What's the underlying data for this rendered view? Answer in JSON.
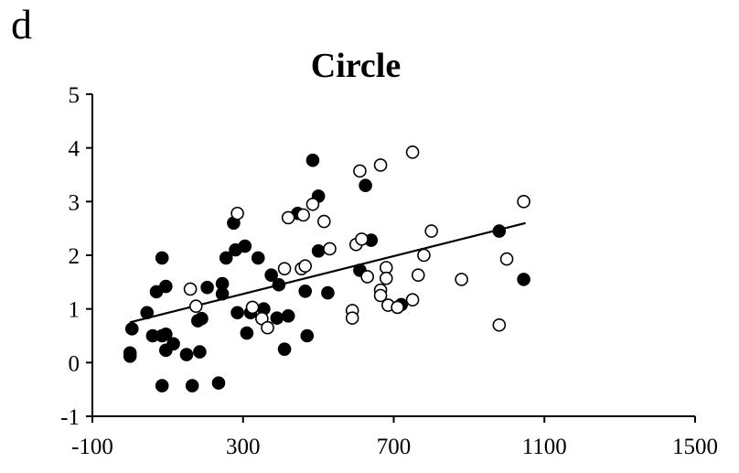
{
  "panel_label": "d",
  "chart_data": {
    "type": "scatter",
    "title": "Circle",
    "xlabel": "",
    "ylabel": "",
    "xlim": [
      -100,
      1500
    ],
    "ylim": [
      -1,
      5
    ],
    "x_ticks": [
      -100,
      300,
      700,
      1100,
      1500
    ],
    "y_ticks": [
      -1,
      0,
      1,
      2,
      3,
      4,
      5
    ],
    "grid": false,
    "legend": "none",
    "series": [
      {
        "marker": "filled-circle",
        "color": "#000000",
        "points": [
          [
            0,
            0.18
          ],
          [
            0,
            0.12
          ],
          [
            5,
            0.63
          ],
          [
            45,
            0.93
          ],
          [
            60,
            0.5
          ],
          [
            70,
            1.32
          ],
          [
            85,
            1.95
          ],
          [
            85,
            0.5
          ],
          [
            85,
            -0.43
          ],
          [
            95,
            1.42
          ],
          [
            95,
            0.53
          ],
          [
            95,
            0.23
          ],
          [
            115,
            0.35
          ],
          [
            150,
            0.15
          ],
          [
            165,
            -0.43
          ],
          [
            180,
            0.78
          ],
          [
            185,
            0.2
          ],
          [
            190,
            0.82
          ],
          [
            205,
            1.4
          ],
          [
            235,
            -0.38
          ],
          [
            245,
            1.47
          ],
          [
            245,
            1.28
          ],
          [
            255,
            1.95
          ],
          [
            275,
            2.6
          ],
          [
            280,
            2.1
          ],
          [
            285,
            0.93
          ],
          [
            305,
            2.17
          ],
          [
            310,
            0.55
          ],
          [
            320,
            0.93
          ],
          [
            340,
            1.95
          ],
          [
            355,
            1.0
          ],
          [
            375,
            1.63
          ],
          [
            390,
            0.83
          ],
          [
            395,
            1.45
          ],
          [
            410,
            0.25
          ],
          [
            420,
            0.87
          ],
          [
            445,
            2.78
          ],
          [
            465,
            1.33
          ],
          [
            470,
            0.5
          ],
          [
            485,
            3.77
          ],
          [
            500,
            3.1
          ],
          [
            500,
            2.08
          ],
          [
            525,
            1.3
          ],
          [
            610,
            1.72
          ],
          [
            625,
            3.3
          ],
          [
            640,
            2.28
          ],
          [
            720,
            1.08
          ],
          [
            980,
            2.45
          ],
          [
            1045,
            1.55
          ]
        ]
      },
      {
        "marker": "open-circle",
        "color": "#000000",
        "points": [
          [
            160,
            1.37
          ],
          [
            175,
            1.05
          ],
          [
            285,
            2.78
          ],
          [
            325,
            1.03
          ],
          [
            350,
            0.82
          ],
          [
            365,
            0.65
          ],
          [
            410,
            1.75
          ],
          [
            420,
            2.7
          ],
          [
            455,
            1.75
          ],
          [
            460,
            2.75
          ],
          [
            465,
            1.8
          ],
          [
            485,
            2.95
          ],
          [
            515,
            2.63
          ],
          [
            530,
            2.12
          ],
          [
            590,
            0.97
          ],
          [
            590,
            0.83
          ],
          [
            600,
            2.2
          ],
          [
            610,
            3.57
          ],
          [
            615,
            2.3
          ],
          [
            630,
            1.6
          ],
          [
            665,
            3.68
          ],
          [
            665,
            1.35
          ],
          [
            665,
            1.25
          ],
          [
            680,
            1.77
          ],
          [
            680,
            1.57
          ],
          [
            685,
            1.07
          ],
          [
            710,
            1.03
          ],
          [
            750,
            3.92
          ],
          [
            750,
            1.17
          ],
          [
            765,
            1.63
          ],
          [
            780,
            2.0
          ],
          [
            800,
            2.45
          ],
          [
            880,
            1.55
          ],
          [
            980,
            0.7
          ],
          [
            1000,
            1.93
          ],
          [
            1045,
            3.0
          ]
        ]
      }
    ],
    "trendline": {
      "x": [
        0,
        1050
      ],
      "y": [
        0.75,
        2.6
      ]
    }
  }
}
